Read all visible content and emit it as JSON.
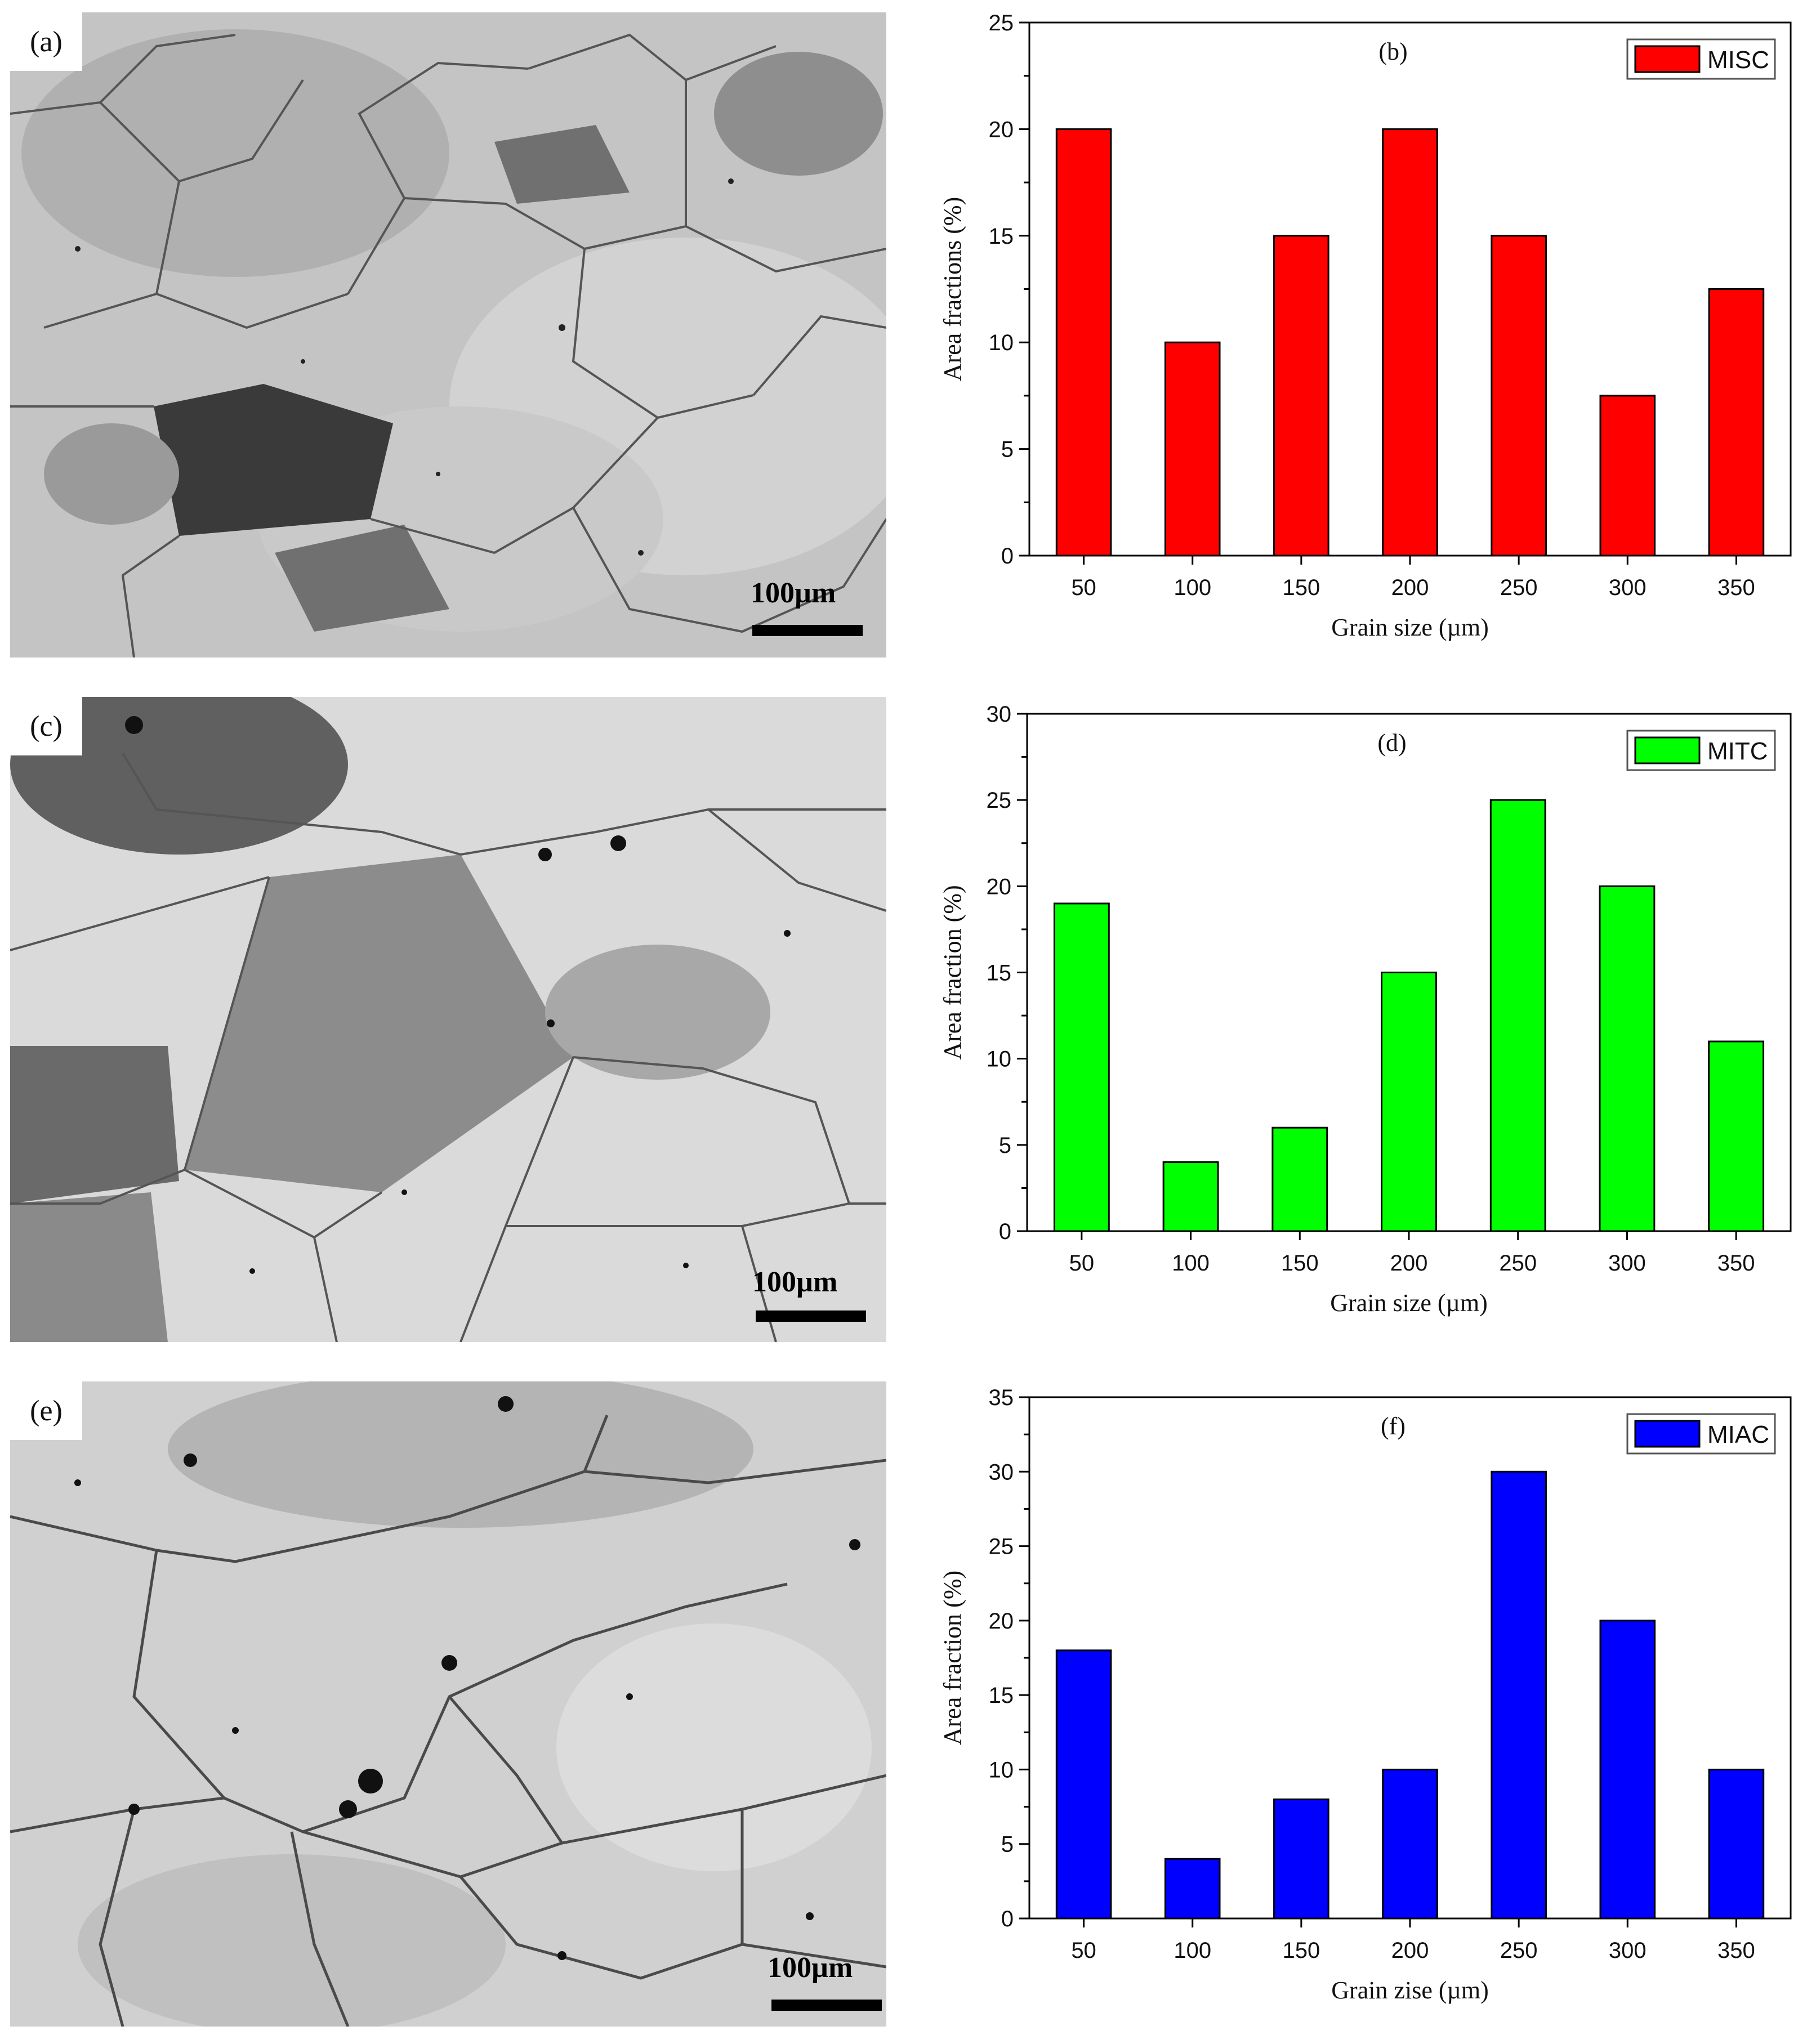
{
  "figure": {
    "micrographs": [
      {
        "letter": "(a)",
        "scale_label": "100µm"
      },
      {
        "letter": "(c)",
        "scale_label": "100µm"
      },
      {
        "letter": "(e)",
        "scale_label": "100µm"
      }
    ]
  },
  "chart_data": [
    {
      "type": "bar",
      "panel_label": "(b)",
      "categories": [
        "50",
        "100",
        "150",
        "200",
        "250",
        "300",
        "350"
      ],
      "series": [
        {
          "name": "MISC",
          "values": [
            20,
            10,
            15,
            20,
            15,
            7.5,
            12.5
          ],
          "color": "#ff0000"
        }
      ],
      "xlabel": "Grain size (µm)",
      "ylabel": "Area fractions (%)",
      "ylim": [
        0,
        25
      ],
      "yticks": [
        "0",
        "5",
        "10",
        "15",
        "20",
        "25"
      ],
      "legend_position": "top-right",
      "grid": false
    },
    {
      "type": "bar",
      "panel_label": "(d)",
      "categories": [
        "50",
        "100",
        "150",
        "200",
        "250",
        "300",
        "350"
      ],
      "series": [
        {
          "name": "MITC",
          "values": [
            19,
            4,
            6,
            15,
            25,
            20,
            11
          ],
          "color": "#00ff00"
        }
      ],
      "xlabel": "Grain size (µm)",
      "ylabel": "Area fraction (%)",
      "ylim": [
        0,
        30
      ],
      "yticks": [
        "0",
        "5",
        "10",
        "15",
        "20",
        "25",
        "30"
      ],
      "legend_position": "top-right",
      "grid": false
    },
    {
      "type": "bar",
      "panel_label": "(f)",
      "categories": [
        "50",
        "100",
        "150",
        "200",
        "250",
        "300",
        "350"
      ],
      "series": [
        {
          "name": "MIAC",
          "values": [
            18,
            4,
            8,
            10,
            30,
            20,
            10
          ],
          "color": "#0000ff"
        }
      ],
      "xlabel": "Grain zise (µm)",
      "ylabel": "Area fraction (%)",
      "ylim": [
        0,
        35
      ],
      "yticks": [
        "0",
        "5",
        "10",
        "15",
        "20",
        "25",
        "30",
        "35"
      ],
      "legend_position": "top-right",
      "grid": false
    }
  ]
}
